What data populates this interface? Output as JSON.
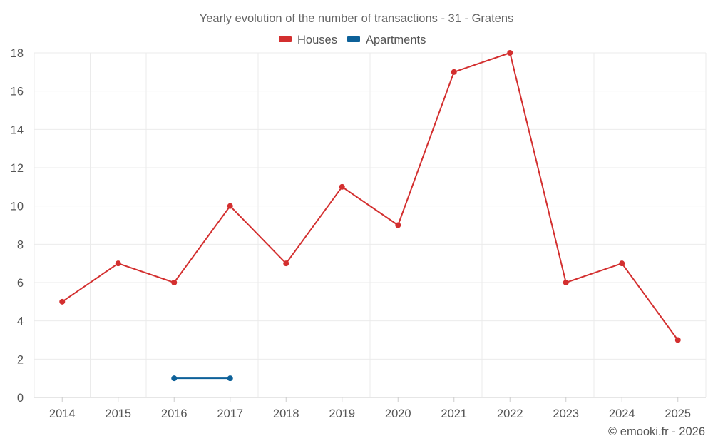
{
  "chart_data": {
    "type": "line",
    "title": "Yearly evolution of the number of transactions - 31 - Gratens",
    "x": [
      "2014",
      "2015",
      "2016",
      "2017",
      "2018",
      "2019",
      "2020",
      "2021",
      "2022",
      "2023",
      "2024",
      "2025"
    ],
    "series": [
      {
        "name": "Houses",
        "color": "#d32f2f",
        "values": [
          5,
          7,
          6,
          10,
          7,
          11,
          9,
          17,
          18,
          6,
          7,
          3
        ]
      },
      {
        "name": "Apartments",
        "color": "#0d6199",
        "values": [
          null,
          null,
          1,
          1,
          null,
          null,
          null,
          null,
          null,
          null,
          null,
          null
        ]
      }
    ],
    "ylim": [
      0,
      18
    ],
    "yticks": [
      0,
      2,
      4,
      6,
      8,
      10,
      12,
      14,
      16,
      18
    ],
    "xlabel": "",
    "ylabel": "",
    "legend": "top-center",
    "grid": true
  },
  "credit": "© emooki.fr - 2026"
}
